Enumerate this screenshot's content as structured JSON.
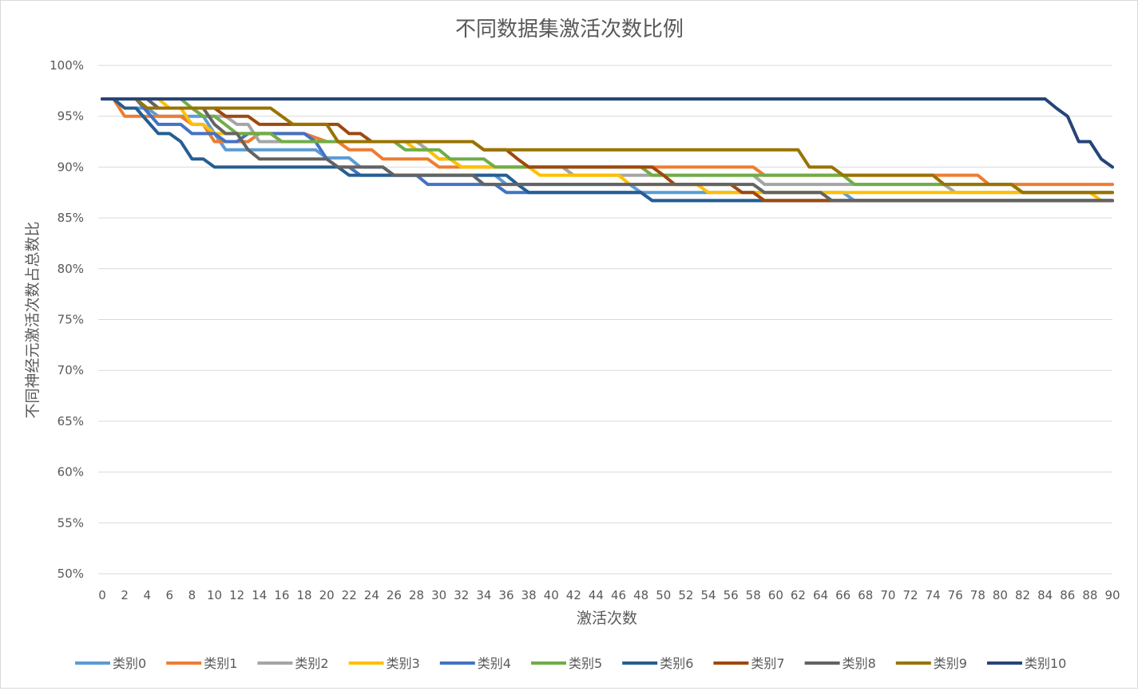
{
  "chart_data": {
    "type": "line",
    "title": "不同数据集激活次数比例",
    "xlabel": "激活次数",
    "ylabel": "不同神经元激活次数占总数比",
    "xlim": [
      0,
      90
    ],
    "ylim": [
      0.5,
      1.0
    ],
    "x_ticks": [
      "0",
      "2",
      "4",
      "6",
      "8",
      "10",
      "12",
      "14",
      "16",
      "18",
      "20",
      "22",
      "24",
      "26",
      "28",
      "30",
      "32",
      "34",
      "36",
      "38",
      "40",
      "42",
      "44",
      "46",
      "48",
      "50",
      "52",
      "54",
      "56",
      "58",
      "60",
      "62",
      "64",
      "66",
      "68",
      "70",
      "72",
      "74",
      "76",
      "78",
      "80",
      "82",
      "84",
      "86",
      "88",
      "90"
    ],
    "y_ticks": [
      "50%",
      "55%",
      "60%",
      "65%",
      "70%",
      "75%",
      "80%",
      "85%",
      "90%",
      "95%",
      "100%"
    ],
    "grid": "horizontal",
    "legend_position": "bottom",
    "series": [
      {
        "name": "类别0",
        "color": "#5b9bd5",
        "points": [
          [
            0,
            0.967
          ],
          [
            1,
            0.967
          ],
          [
            2,
            0.958
          ],
          [
            4,
            0.958
          ],
          [
            5,
            0.95
          ],
          [
            9,
            0.95
          ],
          [
            10,
            0.933
          ],
          [
            11,
            0.917
          ],
          [
            19,
            0.917
          ],
          [
            20,
            0.909
          ],
          [
            22,
            0.909
          ],
          [
            23,
            0.9
          ],
          [
            25,
            0.9
          ],
          [
            26,
            0.892
          ],
          [
            35,
            0.892
          ],
          [
            36,
            0.883
          ],
          [
            47,
            0.883
          ],
          [
            48,
            0.875
          ],
          [
            66,
            0.875
          ],
          [
            67,
            0.867
          ],
          [
            90,
            0.867
          ]
        ]
      },
      {
        "name": "类别1",
        "color": "#ed7d31",
        "points": [
          [
            0,
            0.967
          ],
          [
            1,
            0.967
          ],
          [
            2,
            0.95
          ],
          [
            7,
            0.95
          ],
          [
            8,
            0.942
          ],
          [
            9,
            0.942
          ],
          [
            10,
            0.925
          ],
          [
            13,
            0.925
          ],
          [
            14,
            0.933
          ],
          [
            18,
            0.933
          ],
          [
            20,
            0.925
          ],
          [
            21,
            0.925
          ],
          [
            22,
            0.917
          ],
          [
            24,
            0.917
          ],
          [
            25,
            0.908
          ],
          [
            29,
            0.908
          ],
          [
            30,
            0.9
          ],
          [
            58,
            0.9
          ],
          [
            59,
            0.892
          ],
          [
            77,
            0.892
          ],
          [
            78,
            0.892
          ],
          [
            79,
            0.883
          ],
          [
            90,
            0.883
          ]
        ]
      },
      {
        "name": "类别2",
        "color": "#a5a5a5",
        "points": [
          [
            0,
            0.967
          ],
          [
            3,
            0.967
          ],
          [
            4,
            0.958
          ],
          [
            8,
            0.958
          ],
          [
            9,
            0.95
          ],
          [
            11,
            0.95
          ],
          [
            12,
            0.942
          ],
          [
            13,
            0.942
          ],
          [
            14,
            0.925
          ],
          [
            28,
            0.925
          ],
          [
            29,
            0.917
          ],
          [
            30,
            0.908
          ],
          [
            31,
            0.908
          ],
          [
            32,
            0.9
          ],
          [
            41,
            0.9
          ],
          [
            42,
            0.892
          ],
          [
            58,
            0.892
          ],
          [
            59,
            0.883
          ],
          [
            75,
            0.883
          ],
          [
            76,
            0.875
          ],
          [
            90,
            0.875
          ]
        ]
      },
      {
        "name": "类别3",
        "color": "#ffc000",
        "points": [
          [
            0,
            0.967
          ],
          [
            5,
            0.967
          ],
          [
            6,
            0.958
          ],
          [
            7,
            0.958
          ],
          [
            8,
            0.942
          ],
          [
            9,
            0.942
          ],
          [
            10,
            0.933
          ],
          [
            15,
            0.933
          ],
          [
            16,
            0.925
          ],
          [
            27,
            0.925
          ],
          [
            28,
            0.917
          ],
          [
            29,
            0.917
          ],
          [
            30,
            0.908
          ],
          [
            31,
            0.908
          ],
          [
            32,
            0.9
          ],
          [
            38,
            0.9
          ],
          [
            39,
            0.892
          ],
          [
            46,
            0.892
          ],
          [
            47,
            0.883
          ],
          [
            53,
            0.883
          ],
          [
            54,
            0.875
          ],
          [
            88,
            0.875
          ],
          [
            89,
            0.867
          ],
          [
            90,
            0.867
          ]
        ]
      },
      {
        "name": "类别4",
        "color": "#4472c4",
        "points": [
          [
            0,
            0.967
          ],
          [
            3,
            0.967
          ],
          [
            5,
            0.942
          ],
          [
            7,
            0.942
          ],
          [
            8,
            0.933
          ],
          [
            10,
            0.933
          ],
          [
            11,
            0.925
          ],
          [
            12,
            0.925
          ],
          [
            13,
            0.933
          ],
          [
            18,
            0.933
          ],
          [
            19,
            0.925
          ],
          [
            20,
            0.908
          ],
          [
            21,
            0.9
          ],
          [
            22,
            0.9
          ],
          [
            23,
            0.892
          ],
          [
            28,
            0.892
          ],
          [
            29,
            0.883
          ],
          [
            35,
            0.883
          ],
          [
            36,
            0.875
          ],
          [
            48,
            0.875
          ],
          [
            49,
            0.867
          ],
          [
            90,
            0.867
          ]
        ]
      },
      {
        "name": "类别5",
        "color": "#70ad47",
        "points": [
          [
            0,
            0.967
          ],
          [
            7,
            0.967
          ],
          [
            8,
            0.958
          ],
          [
            9,
            0.95
          ],
          [
            10,
            0.95
          ],
          [
            12,
            0.933
          ],
          [
            15,
            0.933
          ],
          [
            16,
            0.925
          ],
          [
            26,
            0.925
          ],
          [
            27,
            0.917
          ],
          [
            30,
            0.917
          ],
          [
            31,
            0.908
          ],
          [
            34,
            0.908
          ],
          [
            35,
            0.9
          ],
          [
            48,
            0.9
          ],
          [
            49,
            0.892
          ],
          [
            66,
            0.892
          ],
          [
            67,
            0.883
          ],
          [
            81,
            0.883
          ],
          [
            82,
            0.875
          ],
          [
            90,
            0.875
          ]
        ]
      },
      {
        "name": "类别6",
        "color": "#255e91",
        "points": [
          [
            0,
            0.967
          ],
          [
            1,
            0.967
          ],
          [
            2,
            0.958
          ],
          [
            3,
            0.958
          ],
          [
            5,
            0.933
          ],
          [
            6,
            0.933
          ],
          [
            7,
            0.925
          ],
          [
            8,
            0.908
          ],
          [
            9,
            0.908
          ],
          [
            10,
            0.9
          ],
          [
            21,
            0.9
          ],
          [
            22,
            0.892
          ],
          [
            36,
            0.892
          ],
          [
            37,
            0.883
          ],
          [
            38,
            0.875
          ],
          [
            48,
            0.875
          ],
          [
            49,
            0.867
          ],
          [
            90,
            0.867
          ]
        ]
      },
      {
        "name": "类别7",
        "color": "#9e480e",
        "points": [
          [
            0,
            0.967
          ],
          [
            4,
            0.967
          ],
          [
            5,
            0.958
          ],
          [
            9,
            0.958
          ],
          [
            10,
            0.958
          ],
          [
            11,
            0.95
          ],
          [
            13,
            0.95
          ],
          [
            14,
            0.942
          ],
          [
            20,
            0.942
          ],
          [
            21,
            0.942
          ],
          [
            22,
            0.933
          ],
          [
            23,
            0.933
          ],
          [
            24,
            0.925
          ],
          [
            29,
            0.925
          ],
          [
            30,
            0.925
          ],
          [
            33,
            0.925
          ],
          [
            34,
            0.917
          ],
          [
            36,
            0.917
          ],
          [
            37,
            0.908
          ],
          [
            38,
            0.9
          ],
          [
            49,
            0.9
          ],
          [
            50,
            0.892
          ],
          [
            51,
            0.883
          ],
          [
            56,
            0.883
          ],
          [
            57,
            0.875
          ],
          [
            58,
            0.875
          ],
          [
            59,
            0.867
          ],
          [
            90,
            0.867
          ]
        ]
      },
      {
        "name": "类别8",
        "color": "#636363",
        "points": [
          [
            0,
            0.967
          ],
          [
            4,
            0.967
          ],
          [
            5,
            0.958
          ],
          [
            9,
            0.958
          ],
          [
            10,
            0.942
          ],
          [
            11,
            0.933
          ],
          [
            12,
            0.933
          ],
          [
            13,
            0.917
          ],
          [
            14,
            0.908
          ],
          [
            20,
            0.908
          ],
          [
            21,
            0.9
          ],
          [
            25,
            0.9
          ],
          [
            26,
            0.892
          ],
          [
            33,
            0.892
          ],
          [
            34,
            0.883
          ],
          [
            58,
            0.883
          ],
          [
            59,
            0.875
          ],
          [
            64,
            0.875
          ],
          [
            65,
            0.867
          ],
          [
            90,
            0.867
          ]
        ]
      },
      {
        "name": "类别9",
        "color": "#997300",
        "points": [
          [
            0,
            0.967
          ],
          [
            3,
            0.967
          ],
          [
            4,
            0.958
          ],
          [
            9,
            0.958
          ],
          [
            10,
            0.958
          ],
          [
            15,
            0.958
          ],
          [
            16,
            0.95
          ],
          [
            17,
            0.942
          ],
          [
            20,
            0.942
          ],
          [
            21,
            0.925
          ],
          [
            33,
            0.925
          ],
          [
            34,
            0.917
          ],
          [
            62,
            0.917
          ],
          [
            63,
            0.9
          ],
          [
            65,
            0.9
          ],
          [
            66,
            0.892
          ],
          [
            74,
            0.892
          ],
          [
            75,
            0.883
          ],
          [
            81,
            0.883
          ],
          [
            82,
            0.875
          ],
          [
            90,
            0.875
          ]
        ]
      },
      {
        "name": "类别10",
        "color": "#264478",
        "points": [
          [
            0,
            0.967
          ],
          [
            84,
            0.967
          ],
          [
            85,
            0.958
          ],
          [
            86,
            0.95
          ],
          [
            87,
            0.925
          ],
          [
            88,
            0.925
          ],
          [
            89,
            0.908
          ],
          [
            90,
            0.9
          ]
        ]
      }
    ]
  }
}
